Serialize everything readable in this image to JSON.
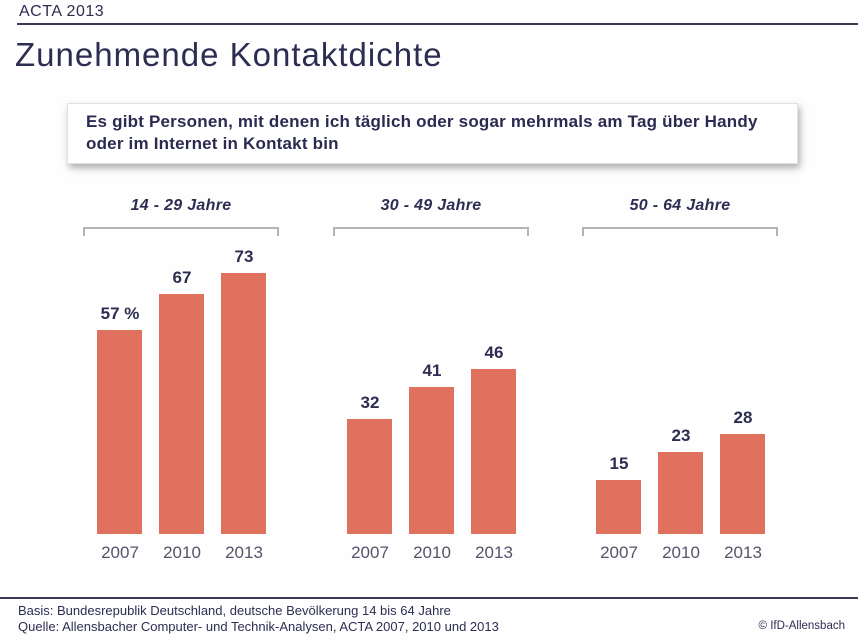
{
  "header": {
    "tag": "ACTA 2013"
  },
  "title": "Zunehmende Kontaktdichte",
  "quote_box": {
    "text": "Es gibt Personen, mit denen ich täglich oder sogar mehrmals am Tag über Handy oder im Internet in Kontakt bin"
  },
  "chart_data": {
    "type": "bar",
    "title": "Zunehmende Kontaktdichte",
    "unit": "percent",
    "categories": [
      "2007",
      "2010",
      "2013"
    ],
    "panels": [
      {
        "label": "14 - 29 Jahre",
        "values": [
          57,
          67,
          73
        ],
        "value_labels": [
          "57 %",
          "67",
          "73"
        ]
      },
      {
        "label": "30 - 49 Jahre",
        "values": [
          32,
          41,
          46
        ],
        "value_labels": [
          "32",
          "41",
          "46"
        ]
      },
      {
        "label": "50 - 64 Jahre",
        "values": [
          15,
          23,
          28
        ],
        "value_labels": [
          "15",
          "23",
          "28"
        ]
      }
    ],
    "ylim": [
      0,
      100
    ],
    "grid": false,
    "legend": false,
    "data_labels": true,
    "bar_color": "#e0715e"
  },
  "footer": {
    "basis": "Basis: Bundesrepublik Deutschland, deutsche Bevölkerung 14 bis 64 Jahre",
    "quelle": "Quelle: Allensbacher Computer- und Technik-Analysen, ACTA 2007, 2010 und 2013",
    "copyright": "© IfD-Allensbach"
  },
  "colors": {
    "navy_text": "#2d2d52",
    "bar": "#e0715e",
    "year_label": "#54546b",
    "bracket": "#b4b4b4",
    "rule": "#3a3a52"
  }
}
